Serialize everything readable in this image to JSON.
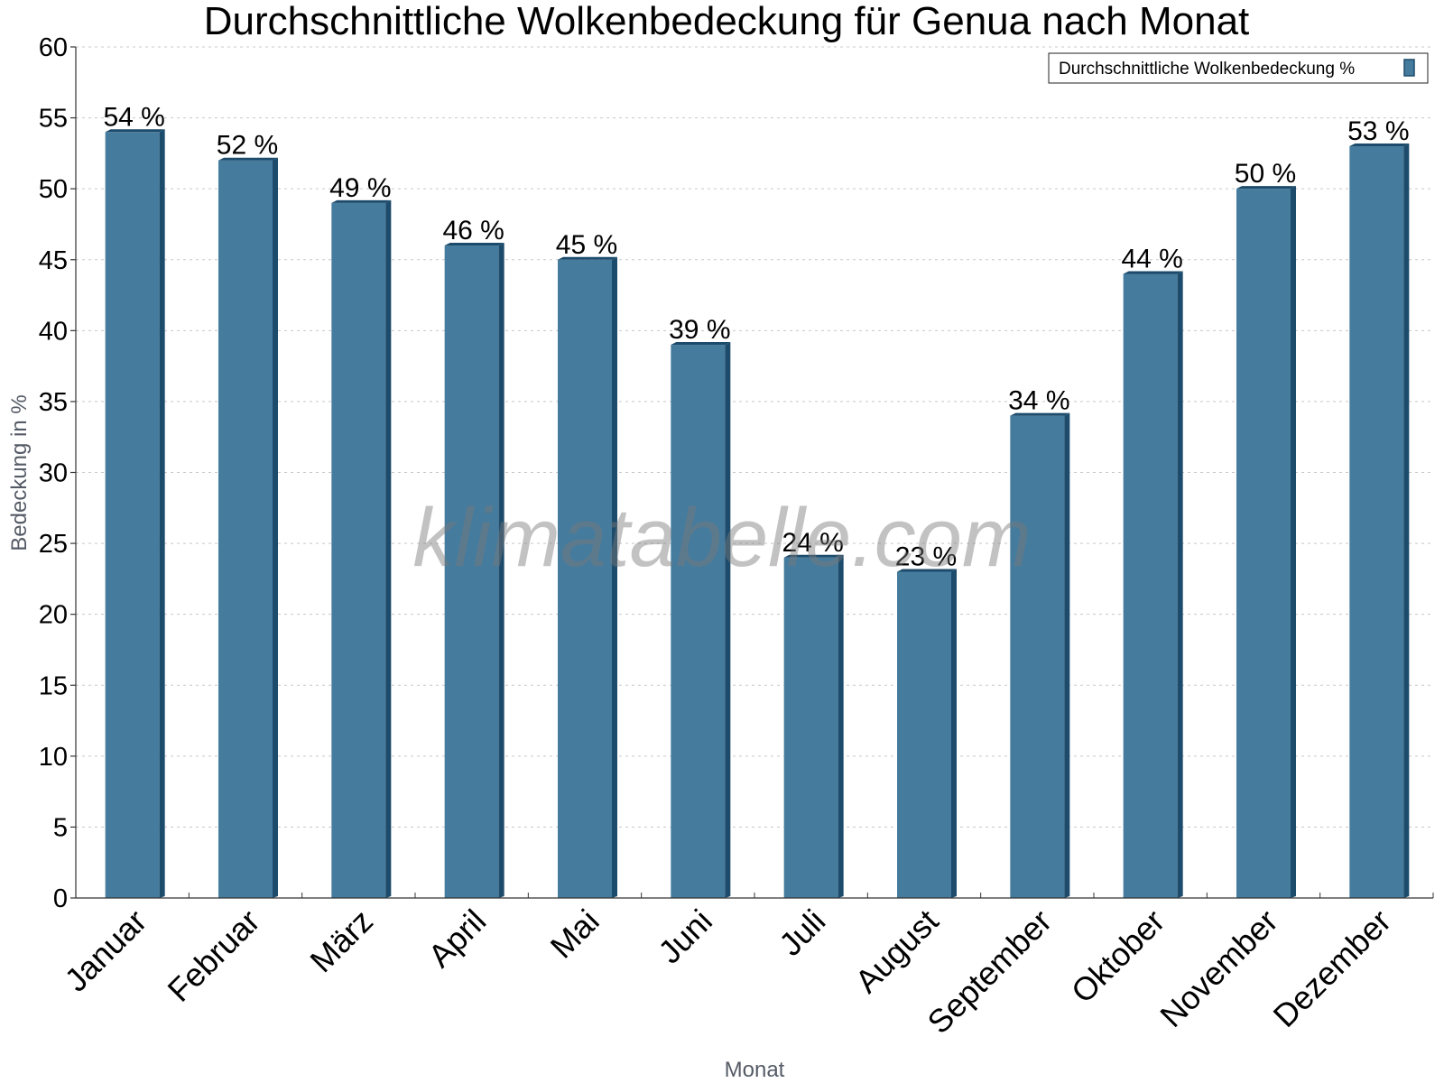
{
  "chart_data": {
    "type": "bar",
    "title": "Durchschnittliche Wolkenbedeckung für Genua nach Monat",
    "xlabel": "Monat",
    "ylabel": "Bedeckung in %",
    "ylim": [
      0,
      60
    ],
    "ytick_step": 5,
    "grid": true,
    "legend_position": "top-right",
    "categories": [
      "Januar",
      "Februar",
      "März",
      "April",
      "Mai",
      "Juni",
      "Juli",
      "August",
      "September",
      "Oktober",
      "November",
      "Dezember"
    ],
    "series": [
      {
        "name": "Durchschnittliche Wolkenbedeckung %",
        "values": [
          54,
          52,
          49,
          46,
          45,
          39,
          24,
          23,
          34,
          44,
          50,
          53
        ],
        "color": "#457b9d",
        "edge_color": "#1d4b6b",
        "data_labels": [
          "54 %",
          "52 %",
          "49 %",
          "46 %",
          "45 %",
          "39 %",
          "24 %",
          "23 %",
          "34 %",
          "44 %",
          "50 %",
          "53 %"
        ]
      }
    ]
  },
  "watermark": "klimatabelle.com"
}
